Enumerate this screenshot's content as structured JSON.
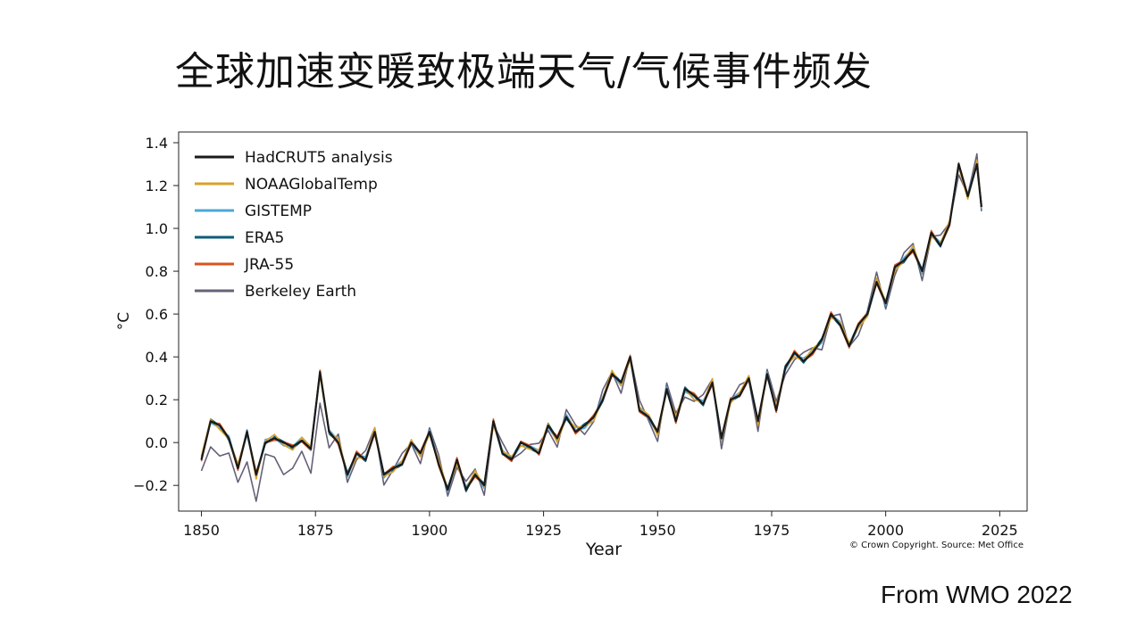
{
  "slide": {
    "title": "全球加速变暖致极端天气/气候事件频发",
    "source_note": "From WMO 2022"
  },
  "chart_data": {
    "type": "line",
    "xlabel": "Year",
    "ylabel": "°C",
    "xlim": [
      1845,
      2031
    ],
    "ylim": [
      -0.32,
      1.45
    ],
    "xticks": [
      1850,
      1875,
      1900,
      1925,
      1950,
      1975,
      2000,
      2025
    ],
    "yticks": [
      -0.2,
      0.0,
      0.2,
      0.4,
      0.6,
      0.8,
      1.0,
      1.2,
      1.4
    ],
    "grid": false,
    "legend_position": "top-left",
    "copyright": "© Crown Copyright. Source: Met Office",
    "x": [
      1850,
      1852,
      1854,
      1856,
      1858,
      1860,
      1862,
      1864,
      1866,
      1868,
      1870,
      1872,
      1874,
      1876,
      1878,
      1880,
      1882,
      1884,
      1886,
      1888,
      1890,
      1892,
      1894,
      1896,
      1898,
      1900,
      1902,
      1904,
      1906,
      1908,
      1910,
      1912,
      1914,
      1916,
      1918,
      1920,
      1922,
      1924,
      1926,
      1928,
      1930,
      1932,
      1934,
      1936,
      1938,
      1940,
      1942,
      1944,
      1946,
      1948,
      1950,
      1952,
      1954,
      1956,
      1958,
      1960,
      1962,
      1964,
      1966,
      1968,
      1970,
      1972,
      1974,
      1976,
      1978,
      1980,
      1982,
      1984,
      1986,
      1988,
      1990,
      1992,
      1994,
      1996,
      1998,
      2000,
      2002,
      2004,
      2006,
      2008,
      2010,
      2012,
      2014,
      2016,
      2018,
      2020,
      2021
    ],
    "series": [
      {
        "name": "HadCRUT5 analysis",
        "color": "#1a1a1a",
        "values": [
          -0.08,
          0.1,
          0.08,
          0.02,
          -0.12,
          0.05,
          -0.15,
          0.0,
          0.02,
          0.0,
          -0.02,
          0.01,
          -0.03,
          0.33,
          0.05,
          0.0,
          -0.15,
          -0.05,
          -0.08,
          0.05,
          -0.15,
          -0.12,
          -0.1,
          0.0,
          -0.05,
          0.05,
          -0.1,
          -0.22,
          -0.08,
          -0.22,
          -0.15,
          -0.2,
          0.1,
          -0.05,
          -0.08,
          0.0,
          -0.02,
          -0.05,
          0.08,
          0.02,
          0.12,
          0.05,
          0.08,
          0.12,
          0.2,
          0.32,
          0.28,
          0.4,
          0.15,
          0.12,
          0.05,
          0.25,
          0.1,
          0.25,
          0.22,
          0.18,
          0.28,
          0.02,
          0.2,
          0.22,
          0.3,
          0.1,
          0.32,
          0.15,
          0.35,
          0.42,
          0.38,
          0.42,
          0.48,
          0.6,
          0.55,
          0.45,
          0.55,
          0.6,
          0.75,
          0.65,
          0.82,
          0.85,
          0.9,
          0.8,
          0.98,
          0.92,
          1.02,
          1.3,
          1.15,
          1.3,
          1.1
        ]
      },
      {
        "name": "NOAAGlobalTemp",
        "color": "#d9a02a",
        "values": null
      },
      {
        "name": "GISTEMP",
        "color": "#4aa8d8",
        "values": null
      },
      {
        "name": "ERA5",
        "color": "#0e5c7a",
        "values": null
      },
      {
        "name": "JRA-55",
        "color": "#d9541e",
        "values": null
      },
      {
        "name": "Berkeley Earth",
        "color": "#666077",
        "values": null
      }
    ]
  }
}
